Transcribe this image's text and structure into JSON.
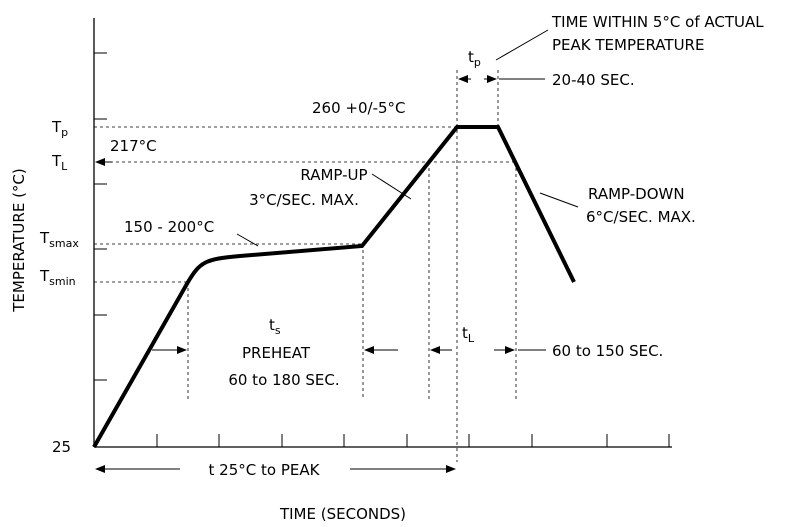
{
  "axes": {
    "y_label": "TEMPERATURE (°C)",
    "x_label": "TIME (SECONDS)",
    "y_ticks": {
      "tp": {
        "main": "T",
        "sub": "p"
      },
      "tl": {
        "main": "T",
        "sub": "L"
      },
      "tsmax": {
        "main": "T",
        "sub": "smax"
      },
      "tsmin": {
        "main": "T",
        "sub": "smin"
      },
      "origin": "25"
    }
  },
  "annotations": {
    "time_within_line1": "TIME WITHIN 5°C of ACTUAL",
    "time_within_line2": "PEAK TEMPERATURE",
    "tp_main": "t",
    "tp_sub": "p",
    "tp_duration": "20-40 SEC.",
    "peak_temp": "260 +0/-5°C",
    "liquidus_temp": "217°C",
    "ramp_up_line1": "RAMP-UP",
    "ramp_up_line2": "3°C/SEC. MAX.",
    "ramp_down_line1": "RAMP-DOWN",
    "ramp_down_line2": "6°C/SEC. MAX.",
    "soak_temp": "150 - 200°C",
    "ts_main": "t",
    "ts_sub": "s",
    "preheat_line1": "PREHEAT",
    "preheat_line2": "60 to 180 SEC.",
    "tl_main": "t",
    "tl_sub": "L",
    "tl_duration": "60 to 150 SEC.",
    "time_to_peak": "t 25°C to PEAK"
  },
  "colors": {
    "line": "#000000",
    "background": "#ffffff"
  }
}
